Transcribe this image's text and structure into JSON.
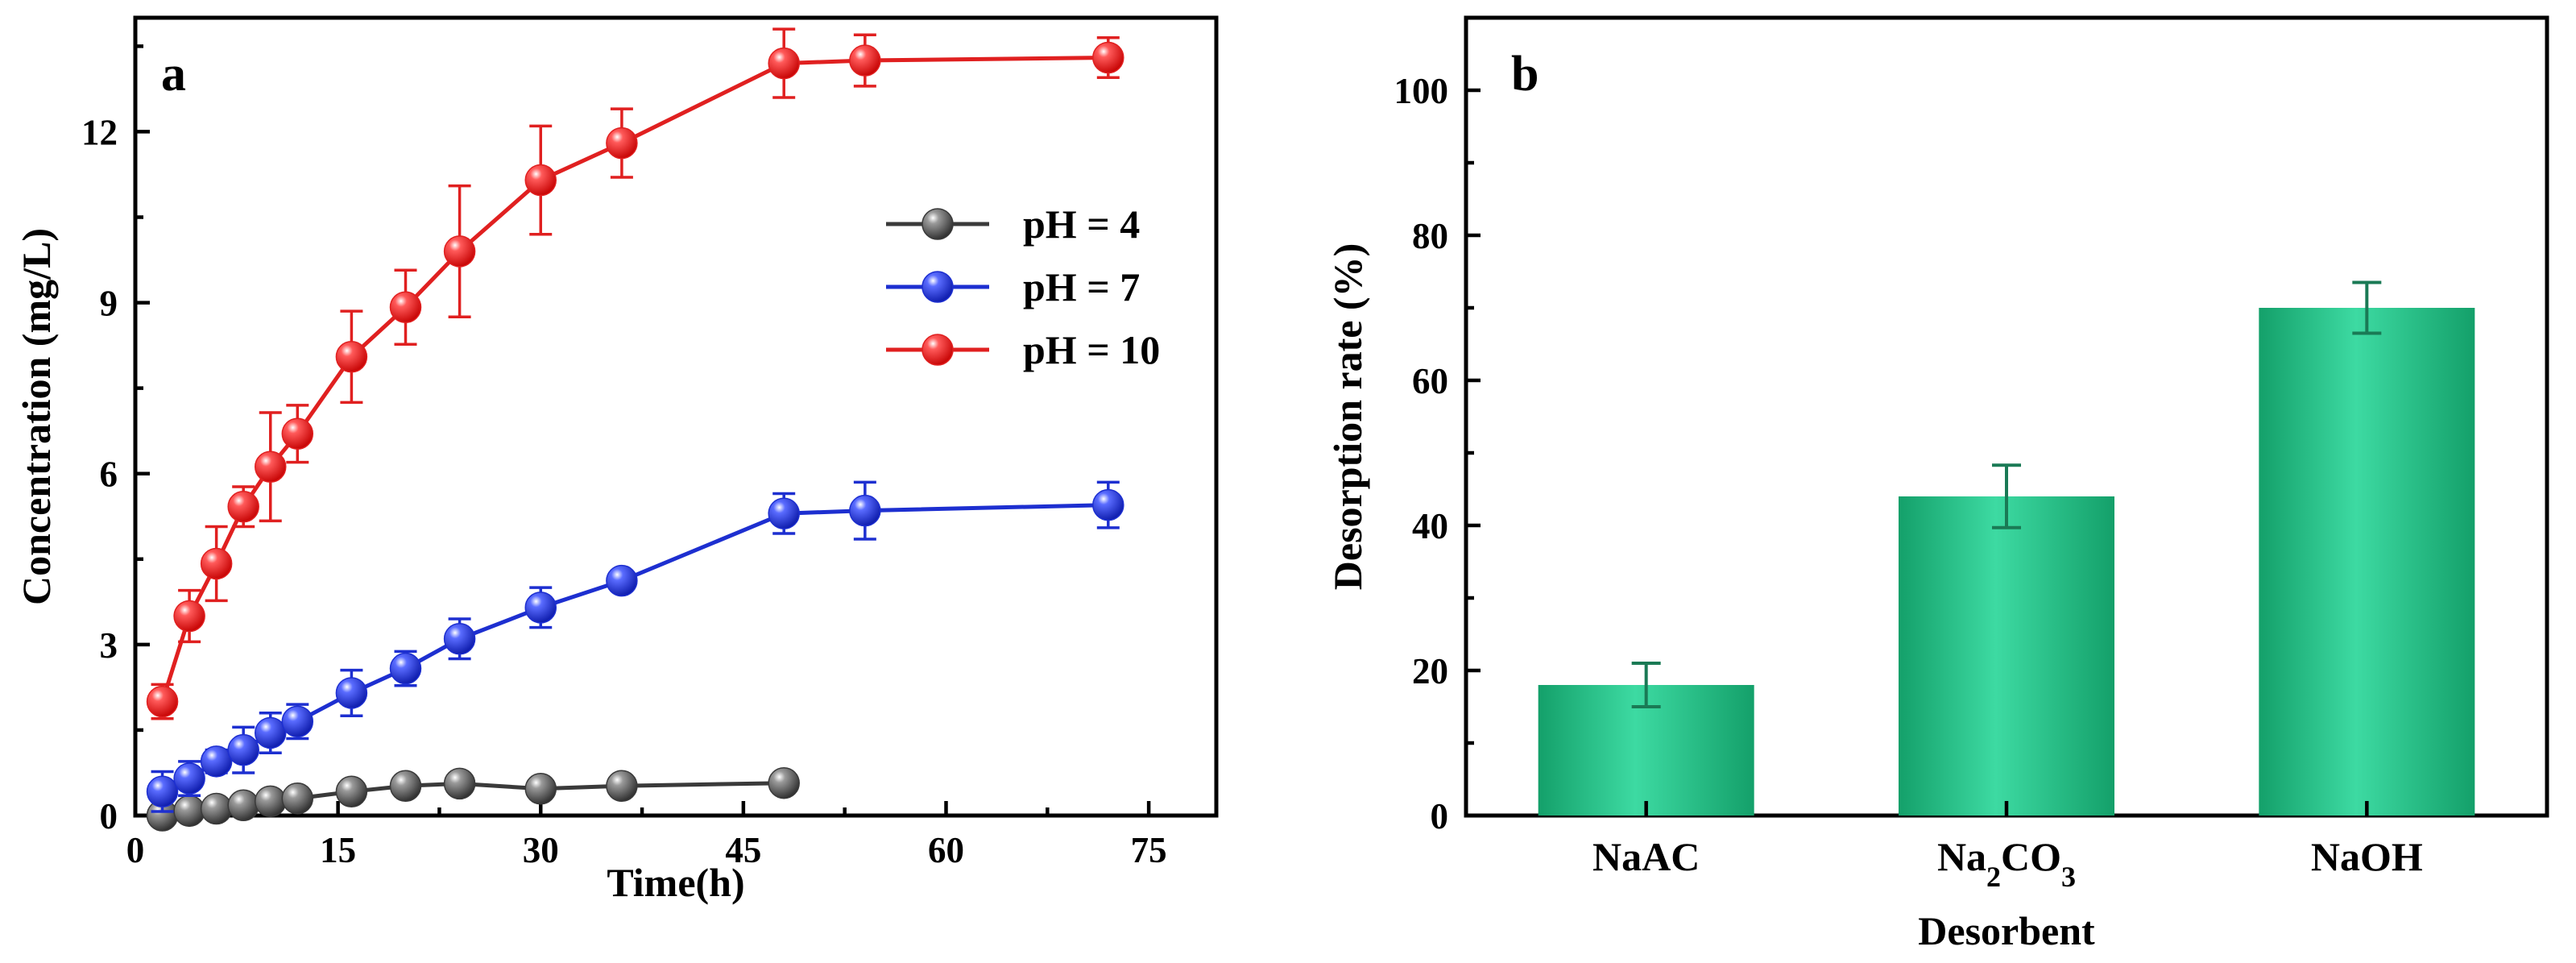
{
  "chart_data": [
    {
      "panel": "a",
      "type": "line",
      "xlabel": "Time(h)",
      "ylabel": "Concentration (mg/L)",
      "xlim": [
        0,
        80
      ],
      "ylim": [
        0,
        14
      ],
      "xticks": [
        0,
        15,
        30,
        45,
        60,
        75
      ],
      "yticks": [
        0,
        3,
        6,
        9,
        12
      ],
      "legend_position": "right",
      "series": [
        {
          "name": "pH = 4",
          "color": "#3a3a3a",
          "x": [
            2,
            4,
            6,
            8,
            10,
            12,
            16,
            20,
            24,
            30,
            36,
            48
          ],
          "y": [
            0.0,
            0.08,
            0.12,
            0.18,
            0.25,
            0.3,
            0.42,
            0.52,
            0.56,
            0.47,
            0.52,
            0.57
          ],
          "err": [
            0.05,
            0.06,
            0.06,
            0.07,
            0.08,
            0.08,
            0.1,
            0.1,
            0.1,
            0.1,
            0.08,
            0.08
          ]
        },
        {
          "name": "pH = 7",
          "color": "#1d2fd0",
          "x": [
            2,
            4,
            6,
            8,
            10,
            12,
            16,
            20,
            24,
            30,
            36,
            48,
            54,
            72
          ],
          "y": [
            0.42,
            0.65,
            0.95,
            1.15,
            1.45,
            1.65,
            2.15,
            2.58,
            3.1,
            3.65,
            4.12,
            5.3,
            5.35,
            5.45
          ],
          "err": [
            0.35,
            0.3,
            0.2,
            0.4,
            0.35,
            0.3,
            0.4,
            0.3,
            0.35,
            0.35,
            0.15,
            0.35,
            0.5,
            0.4
          ]
        },
        {
          "name": "pH = 10",
          "color": "#e02020",
          "x": [
            2,
            4,
            6,
            8,
            10,
            12,
            16,
            20,
            24,
            30,
            36,
            48,
            54,
            72
          ],
          "y": [
            2.0,
            3.5,
            4.42,
            5.42,
            6.12,
            6.7,
            8.05,
            8.92,
            9.9,
            11.15,
            11.8,
            13.2,
            13.25,
            13.3
          ],
          "err": [
            0.3,
            0.45,
            0.65,
            0.35,
            0.95,
            0.5,
            0.8,
            0.65,
            1.15,
            0.95,
            0.6,
            0.6,
            0.45,
            0.35
          ]
        }
      ]
    },
    {
      "panel": "b",
      "type": "bar",
      "xlabel": "Desorbent",
      "ylabel": "Desorption rate (%)",
      "ylim": [
        0,
        110
      ],
      "yticks": [
        0,
        20,
        40,
        60,
        80,
        100
      ],
      "categories": [
        "NaAC",
        "Na2CO3",
        "NaOH"
      ],
      "values": [
        18,
        44,
        70
      ],
      "err": [
        3,
        4.3,
        3.5
      ],
      "color": "#22b07a"
    }
  ]
}
